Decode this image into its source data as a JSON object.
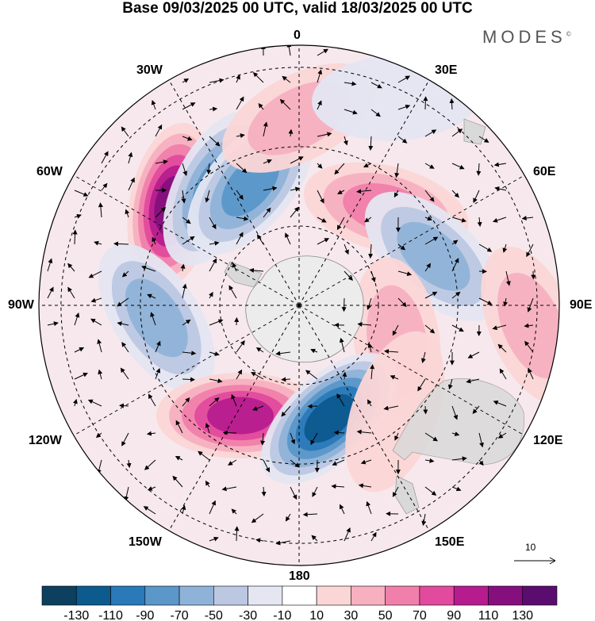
{
  "title": "Base 09/03/2025 00 UTC, valid 18/03/2025 00 UTC",
  "brand": "MODES",
  "brand_mark": "©",
  "longitude_labels": {
    "top": "0",
    "bottom": "180",
    "left": "90W",
    "right": "90E",
    "upper_left_1": "30W",
    "upper_left_2": "60W",
    "lower_left_1": "120W",
    "lower_left_2": "150W",
    "upper_right_1": "30E",
    "upper_right_2": "60E",
    "lower_right_1": "120E",
    "lower_right_2": "150E"
  },
  "reference_vector": "10",
  "colorbar": {
    "ticks": [
      "-130",
      "-110",
      "-90",
      "-70",
      "-50",
      "-30",
      "-10",
      "10",
      "30",
      "50",
      "70",
      "90",
      "110",
      "130"
    ],
    "colors": [
      "#0d3f5e",
      "#0d5a8f",
      "#2a79b8",
      "#5b97c9",
      "#8fb2d8",
      "#bcc8e2",
      "#e4e6f2",
      "#ffffff",
      "#fbd6d6",
      "#f7b0c0",
      "#f07fab",
      "#e14a9d",
      "#b61c8e",
      "#85107d",
      "#5a0d6e"
    ]
  },
  "anomalies": [
    {
      "lon": -52,
      "r": 0.62,
      "value": 125
    },
    {
      "lon": -35,
      "r": 0.55,
      "value": -80
    },
    {
      "lon": -22,
      "r": 0.5,
      "value": -85
    },
    {
      "lon": 0,
      "r": 0.72,
      "value": 45
    },
    {
      "lon": 42,
      "r": 0.5,
      "value": 75
    },
    {
      "lon": 70,
      "r": 0.55,
      "value": -75
    },
    {
      "lon": -95,
      "r": 0.55,
      "value": -70
    },
    {
      "lon": 110,
      "r": 0.4,
      "value": 40
    },
    {
      "lon": 95,
      "r": 0.9,
      "value": 40
    },
    {
      "lon": -152,
      "r": 0.48,
      "value": 100
    },
    {
      "lon": 165,
      "r": 0.45,
      "value": -120
    },
    {
      "lon": 138,
      "r": 0.55,
      "value": 35
    },
    {
      "lon": 25,
      "r": 0.88,
      "value": -20
    },
    {
      "lon": -120,
      "r": 0.85,
      "value": -15
    }
  ],
  "colors": {
    "land": "#d9d9d9",
    "grid": "#000000"
  }
}
